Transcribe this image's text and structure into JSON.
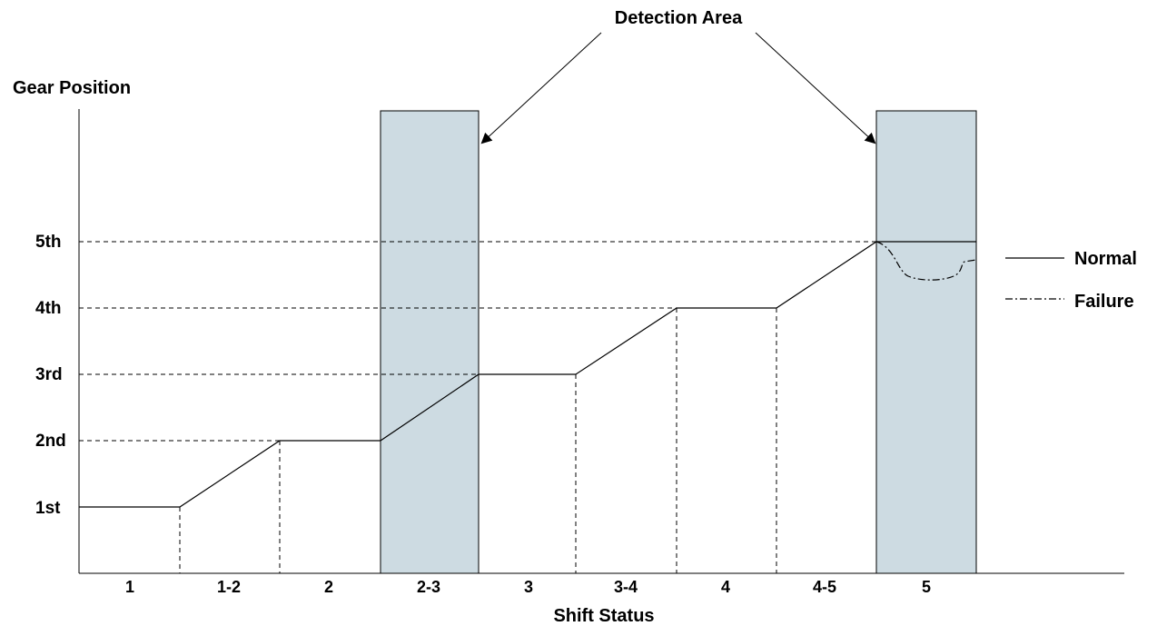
{
  "title": "Detection Area",
  "y_axis": {
    "title": "Gear Position",
    "ticks": [
      "1st",
      "2nd",
      "3rd",
      "4th",
      "5th"
    ]
  },
  "x_axis": {
    "title": "Shift Status",
    "ticks": [
      "1",
      "1-2",
      "2",
      "2-3",
      "3",
      "3-4",
      "4",
      "4-5",
      "5"
    ]
  },
  "legend": {
    "normal": "Normal",
    "failure": "Failure"
  },
  "colors": {
    "detection_area": "#cddbe2",
    "line": "#000000"
  },
  "chart_data": {
    "type": "line",
    "categories": [
      "1",
      "1-2",
      "2",
      "2-3",
      "3",
      "3-4",
      "4",
      "4-5",
      "5"
    ],
    "series": [
      {
        "name": "Normal",
        "gear_levels": [
          1,
          1,
          2,
          2,
          3,
          3,
          4,
          4,
          5,
          5
        ],
        "boundaries": [
          0,
          1,
          2,
          3,
          4,
          5,
          6,
          7,
          8,
          9
        ]
      },
      {
        "name": "Failure",
        "gear_levels": [
          5,
          4.55,
          4.65
        ],
        "boundaries": [
          8,
          8.4,
          8.9
        ]
      }
    ],
    "highlighted_categories": [
      "2-3",
      "5"
    ],
    "xlabel": "Shift Status",
    "ylabel": "Gear Position"
  }
}
